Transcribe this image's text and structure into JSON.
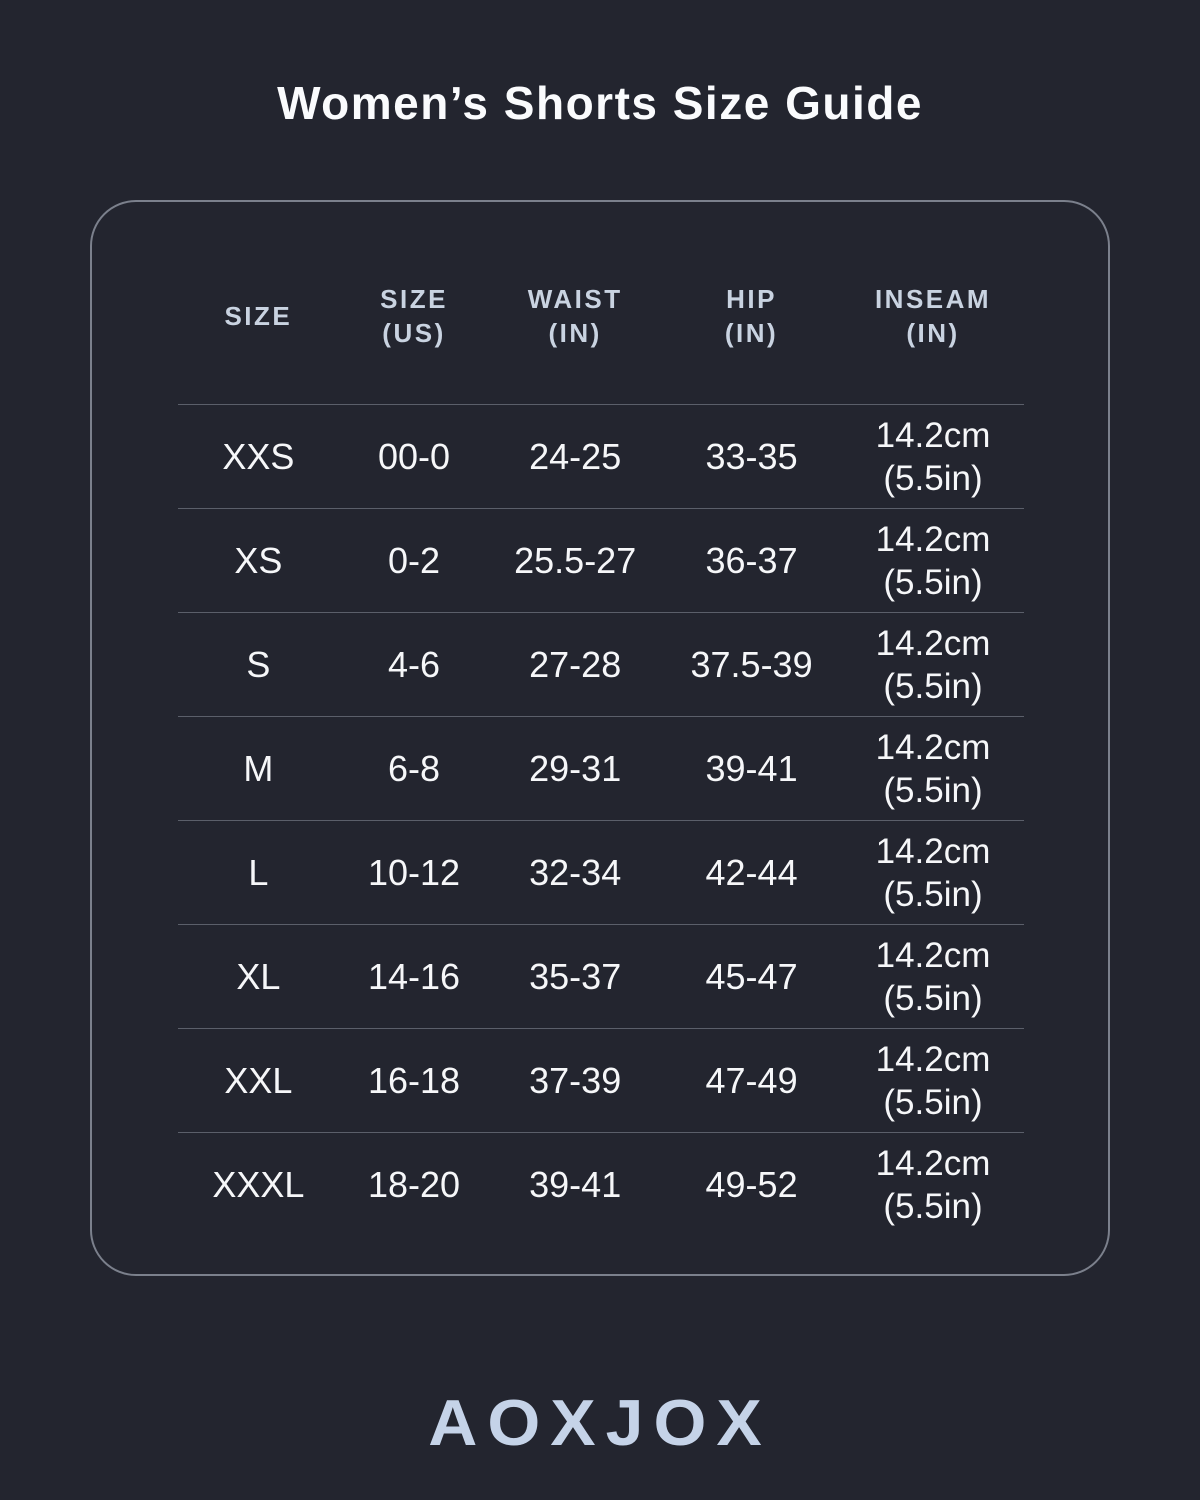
{
  "title": "Women’s Shorts Size Guide",
  "brand": "AOXJOX",
  "colors": {
    "background": "#23252f",
    "title_text": "#fafbfd",
    "header_text": "#c9d3e1",
    "body_text": "#f6f7f9",
    "brand_text": "#c5d3e8",
    "card_border": "rgba(197,204,216,0.55)",
    "row_divider": "rgba(170,177,189,0.42)"
  },
  "table": {
    "headers": [
      {
        "line1": "SIZE",
        "line2": ""
      },
      {
        "line1": "SIZE",
        "line2": "(US)"
      },
      {
        "line1": "WAIST",
        "line2": "(IN)"
      },
      {
        "line1": "HIP",
        "line2": "(IN)"
      },
      {
        "line1": "INSEAM",
        "line2": "(IN)"
      }
    ],
    "rows": [
      {
        "size": "XXS",
        "size_us": "00-0",
        "waist": "24-25",
        "hip": "33-35",
        "inseam_cm": "14.2cm",
        "inseam_in": "(5.5in)"
      },
      {
        "size": "XS",
        "size_us": "0-2",
        "waist": "25.5-27",
        "hip": "36-37",
        "inseam_cm": "14.2cm",
        "inseam_in": "(5.5in)"
      },
      {
        "size": "S",
        "size_us": "4-6",
        "waist": "27-28",
        "hip": "37.5-39",
        "inseam_cm": "14.2cm",
        "inseam_in": "(5.5in)"
      },
      {
        "size": "M",
        "size_us": "6-8",
        "waist": "29-31",
        "hip": "39-41",
        "inseam_cm": "14.2cm",
        "inseam_in": "(5.5in)"
      },
      {
        "size": "L",
        "size_us": "10-12",
        "waist": "32-34",
        "hip": "42-44",
        "inseam_cm": "14.2cm",
        "inseam_in": "(5.5in)"
      },
      {
        "size": "XL",
        "size_us": "14-16",
        "waist": "35-37",
        "hip": "45-47",
        "inseam_cm": "14.2cm",
        "inseam_in": "(5.5in)"
      },
      {
        "size": "XXL",
        "size_us": "16-18",
        "waist": "37-39",
        "hip": "47-49",
        "inseam_cm": "14.2cm",
        "inseam_in": "(5.5in)"
      },
      {
        "size": "XXXL",
        "size_us": "18-20",
        "waist": "39-41",
        "hip": "49-52",
        "inseam_cm": "14.2cm",
        "inseam_in": "(5.5in)"
      }
    ]
  },
  "chart_data": {
    "type": "table",
    "title": "Women’s Shorts Size Guide",
    "columns": [
      "SIZE",
      "SIZE (US)",
      "WAIST (IN)",
      "HIP (IN)",
      "INSEAM (IN)"
    ],
    "rows": [
      [
        "XXS",
        "00-0",
        "24-25",
        "33-35",
        "14.2cm (5.5in)"
      ],
      [
        "XS",
        "0-2",
        "25.5-27",
        "36-37",
        "14.2cm (5.5in)"
      ],
      [
        "S",
        "4-6",
        "27-28",
        "37.5-39",
        "14.2cm (5.5in)"
      ],
      [
        "M",
        "6-8",
        "29-31",
        "39-41",
        "14.2cm (5.5in)"
      ],
      [
        "L",
        "10-12",
        "32-34",
        "42-44",
        "14.2cm (5.5in)"
      ],
      [
        "XL",
        "14-16",
        "35-37",
        "45-47",
        "14.2cm (5.5in)"
      ],
      [
        "XXL",
        "16-18",
        "37-39",
        "47-49",
        "14.2cm (5.5in)"
      ],
      [
        "XXXL",
        "18-20",
        "39-41",
        "49-52",
        "14.2cm (5.5in)"
      ]
    ]
  }
}
